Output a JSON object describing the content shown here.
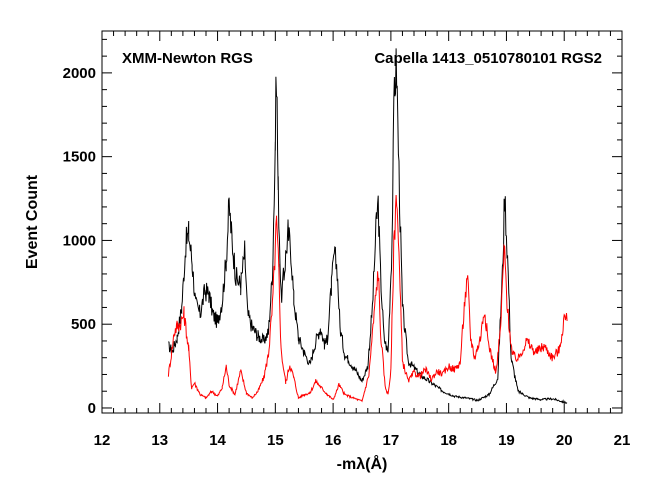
{
  "chart_data": {
    "type": "line",
    "annotations": {
      "instrument": "XMM-Newton RGS",
      "observation": "Capella 1413_0510780101 RGS2"
    },
    "xlabel": "-mλ(Å)",
    "ylabel": "Event Count",
    "xlim": [
      12,
      21
    ],
    "ylim": [
      -30,
      2250
    ],
    "xticks": [
      "12",
      "13",
      "14",
      "15",
      "16",
      "17",
      "18",
      "19",
      "20",
      "21"
    ],
    "yticks": [
      "0",
      "500",
      "1000",
      "1500",
      "2000"
    ],
    "colors": {
      "black_series": "#000000",
      "red_series": "#ff0000"
    },
    "series": [
      {
        "color": "black",
        "points": [
          [
            13.15,
            370
          ],
          [
            13.22,
            340
          ],
          [
            13.3,
            420
          ],
          [
            13.38,
            600
          ],
          [
            13.45,
            980
          ],
          [
            13.5,
            1040
          ],
          [
            13.56,
            870
          ],
          [
            13.62,
            620
          ],
          [
            13.7,
            560
          ],
          [
            13.78,
            700
          ],
          [
            13.85,
            680
          ],
          [
            13.92,
            560
          ],
          [
            14.0,
            510
          ],
          [
            14.08,
            640
          ],
          [
            14.15,
            890
          ],
          [
            14.2,
            1210
          ],
          [
            14.25,
            1000
          ],
          [
            14.32,
            780
          ],
          [
            14.4,
            730
          ],
          [
            14.47,
            930
          ],
          [
            14.52,
            560
          ],
          [
            14.6,
            480
          ],
          [
            14.7,
            430
          ],
          [
            14.8,
            400
          ],
          [
            14.88,
            450
          ],
          [
            14.95,
            800
          ],
          [
            15.0,
            1600
          ],
          [
            15.02,
            2040
          ],
          [
            15.05,
            1300
          ],
          [
            15.1,
            650
          ],
          [
            15.15,
            800
          ],
          [
            15.22,
            1050
          ],
          [
            15.27,
            940
          ],
          [
            15.32,
            650
          ],
          [
            15.4,
            420
          ],
          [
            15.5,
            330
          ],
          [
            15.6,
            260
          ],
          [
            15.7,
            400
          ],
          [
            15.78,
            480
          ],
          [
            15.85,
            380
          ],
          [
            15.9,
            410
          ],
          [
            15.97,
            720
          ],
          [
            16.02,
            920
          ],
          [
            16.07,
            830
          ],
          [
            16.12,
            480
          ],
          [
            16.2,
            320
          ],
          [
            16.3,
            270
          ],
          [
            16.4,
            220
          ],
          [
            16.5,
            160
          ],
          [
            16.6,
            250
          ],
          [
            16.68,
            600
          ],
          [
            16.75,
            1120
          ],
          [
            16.78,
            1220
          ],
          [
            16.82,
            800
          ],
          [
            16.88,
            420
          ],
          [
            16.95,
            330
          ],
          [
            17.02,
            1000
          ],
          [
            17.06,
            1950
          ],
          [
            17.1,
            2020
          ],
          [
            17.14,
            1400
          ],
          [
            17.2,
            600
          ],
          [
            17.3,
            280
          ],
          [
            17.5,
            200
          ],
          [
            17.7,
            150
          ],
          [
            17.9,
            100
          ],
          [
            18.1,
            70
          ],
          [
            18.3,
            60
          ],
          [
            18.5,
            45
          ],
          [
            18.7,
            80
          ],
          [
            18.85,
            180
          ],
          [
            18.93,
            800
          ],
          [
            18.97,
            1280
          ],
          [
            19.02,
            900
          ],
          [
            19.08,
            300
          ],
          [
            19.2,
            100
          ],
          [
            19.4,
            60
          ],
          [
            19.6,
            50
          ],
          [
            19.8,
            55
          ],
          [
            19.95,
            40
          ],
          [
            20.05,
            30
          ]
        ]
      },
      {
        "color": "red",
        "points": [
          [
            13.15,
            200
          ],
          [
            13.2,
            320
          ],
          [
            13.25,
            450
          ],
          [
            13.3,
            490
          ],
          [
            13.35,
            500
          ],
          [
            13.42,
            560
          ],
          [
            13.5,
            350
          ],
          [
            13.55,
            120
          ],
          [
            13.6,
            150
          ],
          [
            13.7,
            80
          ],
          [
            13.8,
            60
          ],
          [
            13.9,
            100
          ],
          [
            14.0,
            70
          ],
          [
            14.08,
            120
          ],
          [
            14.15,
            250
          ],
          [
            14.2,
            140
          ],
          [
            14.3,
            80
          ],
          [
            14.4,
            220
          ],
          [
            14.5,
            90
          ],
          [
            14.6,
            60
          ],
          [
            14.7,
            100
          ],
          [
            14.8,
            180
          ],
          [
            14.88,
            320
          ],
          [
            14.95,
            600
          ],
          [
            15.02,
            1100
          ],
          [
            15.06,
            820
          ],
          [
            15.1,
            340
          ],
          [
            15.18,
            150
          ],
          [
            15.25,
            260
          ],
          [
            15.32,
            180
          ],
          [
            15.4,
            60
          ],
          [
            15.5,
            80
          ],
          [
            15.6,
            90
          ],
          [
            15.7,
            160
          ],
          [
            15.8,
            120
          ],
          [
            15.9,
            80
          ],
          [
            16.0,
            50
          ],
          [
            16.05,
            90
          ],
          [
            16.1,
            140
          ],
          [
            16.2,
            80
          ],
          [
            16.35,
            60
          ],
          [
            16.5,
            40
          ],
          [
            16.62,
            200
          ],
          [
            16.72,
            600
          ],
          [
            16.78,
            820
          ],
          [
            16.82,
            460
          ],
          [
            16.9,
            130
          ],
          [
            16.95,
            80
          ],
          [
            17.0,
            220
          ],
          [
            17.05,
            950
          ],
          [
            17.1,
            1320
          ],
          [
            17.14,
            900
          ],
          [
            17.2,
            280
          ],
          [
            17.3,
            160
          ],
          [
            17.4,
            210
          ],
          [
            17.5,
            190
          ],
          [
            17.6,
            230
          ],
          [
            17.7,
            170
          ],
          [
            17.8,
            220
          ],
          [
            17.9,
            200
          ],
          [
            18.0,
            250
          ],
          [
            18.1,
            230
          ],
          [
            18.2,
            270
          ],
          [
            18.28,
            650
          ],
          [
            18.33,
            760
          ],
          [
            18.38,
            420
          ],
          [
            18.45,
            300
          ],
          [
            18.55,
            420
          ],
          [
            18.62,
            600
          ],
          [
            18.68,
            400
          ],
          [
            18.75,
            300
          ],
          [
            18.82,
            210
          ],
          [
            18.9,
            480
          ],
          [
            18.96,
            960
          ],
          [
            19.02,
            580
          ],
          [
            19.1,
            320
          ],
          [
            19.2,
            290
          ],
          [
            19.35,
            400
          ],
          [
            19.5,
            330
          ],
          [
            19.65,
            370
          ],
          [
            19.8,
            300
          ],
          [
            19.92,
            350
          ],
          [
            20.0,
            540
          ],
          [
            20.05,
            520
          ]
        ]
      }
    ]
  }
}
